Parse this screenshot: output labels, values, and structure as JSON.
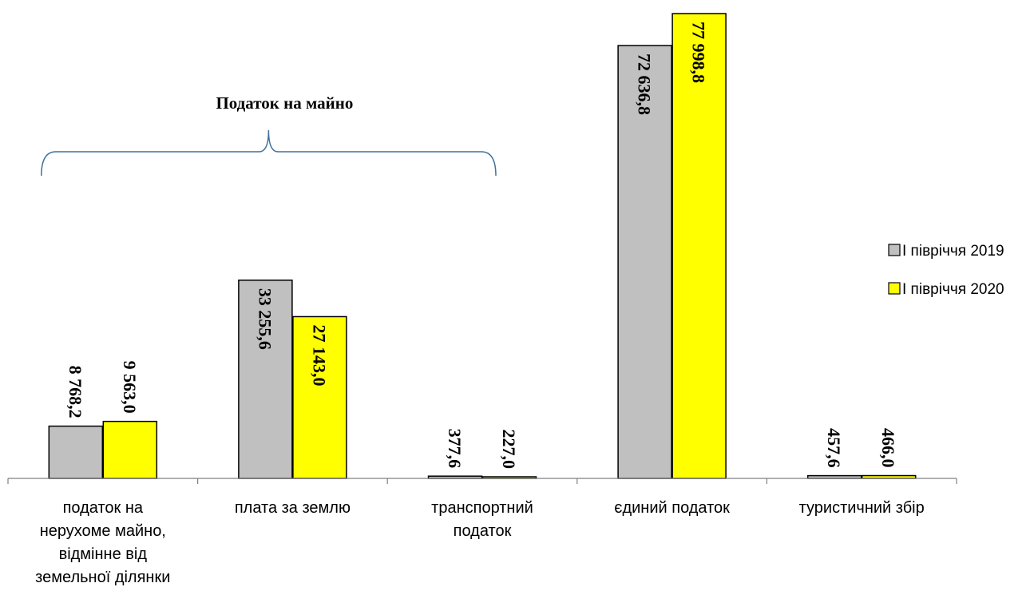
{
  "chart_data": {
    "type": "bar",
    "categories": [
      [
        "податок на",
        "нерухоме майно,",
        "відмінне від",
        "земельної ділянки"
      ],
      [
        "плата за землю"
      ],
      [
        "транспортний",
        "податок"
      ],
      [
        "єдиний податок"
      ],
      [
        "туристичний збір"
      ]
    ],
    "series": [
      {
        "name": "І півріччя 2019",
        "color": "#C0C0C0",
        "values": [
          8768.2,
          33255.6,
          377.6,
          72636.8,
          457.6
        ],
        "labels": [
          "8 768,2",
          "33 255,6",
          "377,6",
          "72 636,8",
          "457,6"
        ]
      },
      {
        "name": "І півріччя 2020",
        "color": "#FFFF00",
        "values": [
          9563.0,
          27143.0,
          227.0,
          77998.8,
          466.0
        ],
        "labels": [
          "9 563,0",
          "27 143,0",
          "227,0",
          "77 998,8",
          "466,0"
        ]
      }
    ],
    "ylim": [
      0,
      80000
    ],
    "grid": false,
    "legend": "right",
    "annotation": {
      "text": "Податок на майно",
      "spans_categories": [
        0,
        2
      ],
      "style": "curly-brace",
      "color": "#41719C"
    }
  }
}
